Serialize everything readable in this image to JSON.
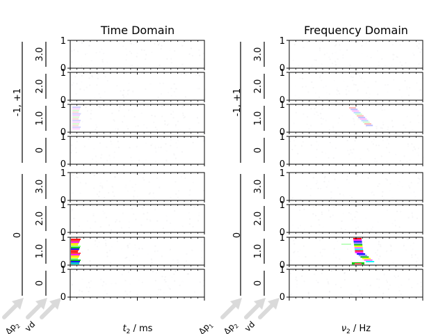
{
  "chart_data": [
    {
      "type": "heatmap",
      "title": "Time Domain",
      "xlabel_main": "t",
      "xlabel_sub": "2",
      "xlabel_unit": " / ms",
      "outer_groups": [
        "-1, +1",
        "0"
      ],
      "inner_rows": [
        "3.0",
        "2.0",
        "1.0",
        "0"
      ],
      "ylim": [
        0,
        1
      ],
      "ytick_labels": [
        "0",
        "1"
      ],
      "dimension_labels": [
        {
          "main": "Δp",
          "sub": "2"
        },
        {
          "main": "vd",
          "sub": ""
        }
      ],
      "bright_features": [
        {
          "group": "0",
          "row": "1.0",
          "description_colors": [
            "#ff0000",
            "#ff00ff",
            "#ffff00",
            "#00c000",
            "#0000ff"
          ]
        }
      ]
    },
    {
      "type": "heatmap",
      "title": "Frequency Domain",
      "xlabel_main": "ν",
      "xlabel_sub": "2",
      "xlabel_unit": " / Hz",
      "outer_groups": [
        "-1, +1",
        "0"
      ],
      "inner_rows": [
        "3.0",
        "2.0",
        "1.0",
        "0"
      ],
      "ylim": [
        0,
        1
      ],
      "ytick_labels": [
        "0",
        "1"
      ],
      "dimension_labels": [
        {
          "main": "Δp",
          "sub": "1"
        },
        {
          "main": "Δp",
          "sub": "2"
        },
        {
          "main": "vd",
          "sub": ""
        }
      ],
      "bright_features": [
        {
          "group": "0",
          "row": "1.0",
          "description_colors": [
            "#ff0000",
            "#ff00ff",
            "#0000ff",
            "#00c000",
            "#ffff00"
          ]
        }
      ]
    }
  ]
}
